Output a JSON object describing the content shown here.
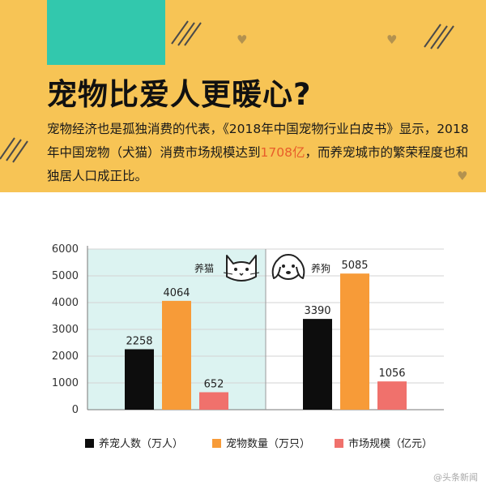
{
  "header": {
    "title": "宠物比爱人更暖心?",
    "paragraph_before": "宠物经济也是孤独消费的代表，《2018年中国宠物行业白皮书》显示，2018年中国宠物（犬猫）消费市场规模达到",
    "paragraph_highlight": "1708亿",
    "paragraph_after": "，而养宠城市的繁荣程度也和独居人口成正比。",
    "colors": {
      "background": "#f7c455",
      "teal": "#32c8ad",
      "highlight": "#e85d2a"
    },
    "icons": [
      "heart-icon",
      "hatch-lines"
    ]
  },
  "chart_data": {
    "type": "bar",
    "groups": [
      {
        "label": "养猫",
        "icon": "cat-icon",
        "shaded": true,
        "shade_color": "#dcf3f1"
      },
      {
        "label": "养狗",
        "icon": "dog-icon",
        "shaded": false
      }
    ],
    "series": [
      {
        "name": "养宠人数（万人）",
        "color": "#0d0d0d",
        "values": [
          2258,
          3390
        ]
      },
      {
        "name": "宠物数量（万只）",
        "color": "#f79b38",
        "values": [
          4064,
          5085
        ]
      },
      {
        "name": "市场规模（亿元）",
        "color": "#f0716c",
        "values": [
          652,
          1056
        ]
      }
    ],
    "data_labels": [
      [
        "2258",
        "3390"
      ],
      [
        "4064",
        "5085"
      ],
      [
        "652",
        "1056"
      ]
    ],
    "y_ticks": [
      "0",
      "1000",
      "2000",
      "3000",
      "4000",
      "5000",
      "6000"
    ],
    "ylim": [
      0,
      6000
    ],
    "grid": true,
    "legend_position": "bottom"
  },
  "watermark": "@头条新闻"
}
